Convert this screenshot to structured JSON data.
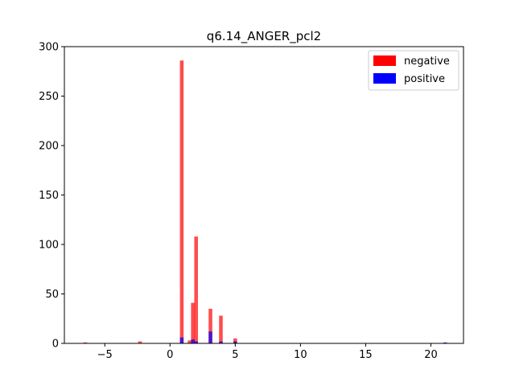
{
  "chart_data": {
    "type": "bar",
    "title": "q6.14_ANGER_pcl2",
    "xlabel": "",
    "ylabel": "",
    "xlim": [
      -8.1,
      22.5
    ],
    "ylim": [
      0,
      300
    ],
    "xticks": [
      -5,
      0,
      5,
      10,
      15,
      20
    ],
    "yticks": [
      0,
      50,
      100,
      150,
      200,
      250,
      300
    ],
    "xtick_labels": [
      "−5",
      "0",
      "5",
      "10",
      "15",
      "20"
    ],
    "ytick_labels": [
      "0",
      "50",
      "100",
      "150",
      "200",
      "250",
      "300"
    ],
    "bin_width": 0.28,
    "legend_position": "top-right",
    "grid": false,
    "series": [
      {
        "name": "negative",
        "color": "#ff0000",
        "opacity": 0.7,
        "x": [
          -6.5,
          -2.3,
          0.9,
          1.5,
          1.75,
          2.0,
          3.1,
          3.9,
          5.0,
          21.1
        ],
        "values": [
          1,
          2,
          286,
          3,
          41,
          108,
          35,
          28,
          5,
          0
        ]
      },
      {
        "name": "positive",
        "color": "#0000ff",
        "opacity": 0.7,
        "x": [
          0.9,
          1.75,
          2.0,
          3.1,
          3.9,
          5.0,
          21.1
        ],
        "values": [
          6,
          4,
          2,
          12,
          2,
          2,
          1
        ]
      }
    ]
  }
}
